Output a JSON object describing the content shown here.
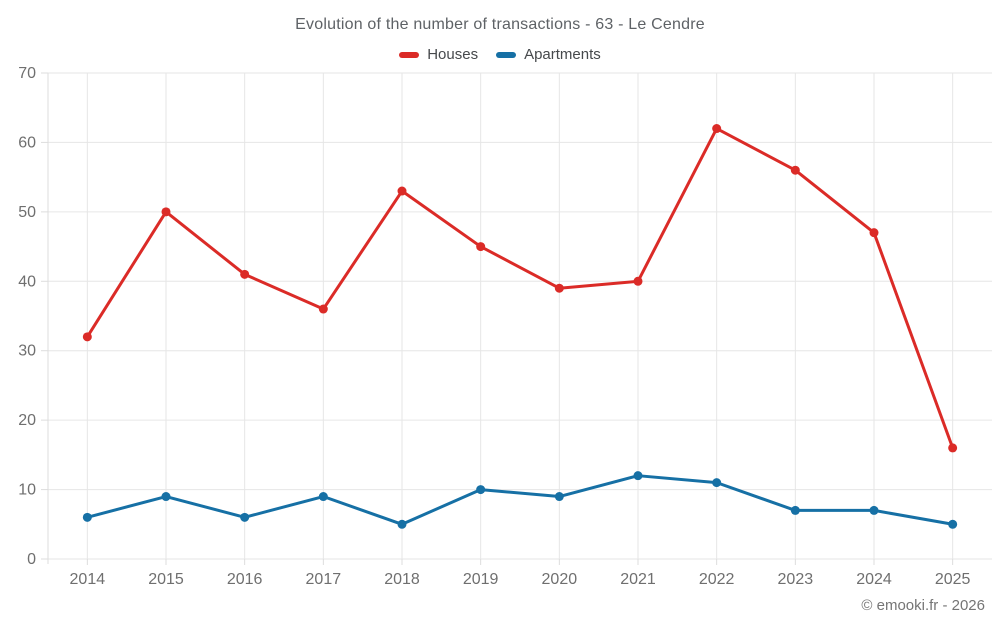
{
  "chart": {
    "title": "Evolution of the number of transactions - 63 - Le Cendre",
    "legend": [
      {
        "label": "Houses",
        "color": "#db2b27"
      },
      {
        "label": "Apartments",
        "color": "#1670a5"
      }
    ]
  },
  "chart_data": {
    "type": "line",
    "title": "Evolution of the number of transactions - 63 - Le Cendre",
    "categories": [
      "2014",
      "2015",
      "2016",
      "2017",
      "2018",
      "2019",
      "2020",
      "2021",
      "2022",
      "2023",
      "2024",
      "2025"
    ],
    "series": [
      {
        "name": "Houses",
        "color": "#db2b27",
        "values": [
          32,
          50,
          41,
          36,
          53,
          45,
          39,
          40,
          62,
          56,
          47,
          16
        ]
      },
      {
        "name": "Apartments",
        "color": "#1670a5",
        "values": [
          6,
          9,
          6,
          9,
          5,
          10,
          9,
          12,
          11,
          7,
          7,
          5
        ]
      }
    ],
    "xlabel": "",
    "ylabel": "",
    "ylim": [
      0,
      70
    ],
    "y_ticks": [
      0,
      10,
      20,
      30,
      40,
      50,
      60,
      70
    ],
    "grid": true,
    "legend_position": "top",
    "colors": {
      "grid": "#e6e6e6",
      "tick": "#dddddd",
      "axis_label": "#6f6f6f"
    }
  },
  "footer": {
    "copyright": "© emooki.fr - 2026"
  }
}
